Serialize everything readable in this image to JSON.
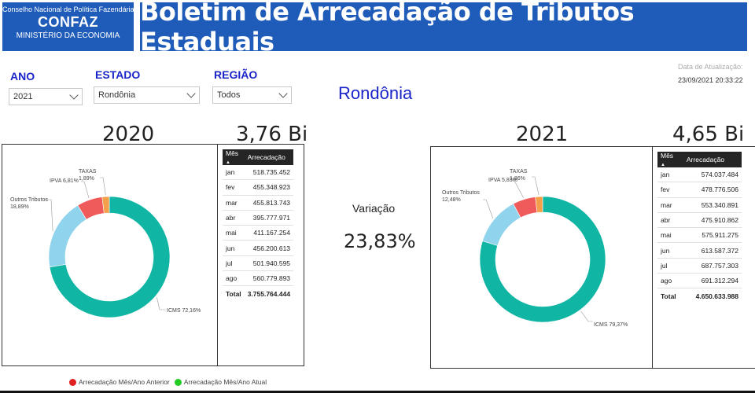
{
  "header": {
    "council": "Conselho Nacional de Política Fazendária",
    "org": "CONFAZ",
    "ministry": "MINISTÉRIO DA ECONOMIA",
    "title": "Boletim de Arrecadação de Tributos Estaduais"
  },
  "filters": {
    "year_label": "ANO",
    "year_value": "2021",
    "state_label": "ESTADO",
    "state_value": "Rondônia",
    "region_label": "REGIÃO",
    "region_value": "Todos"
  },
  "region_name": "Rondônia",
  "update": {
    "label": "Data de Atualização:",
    "value": "23/09/2021 20:33:22"
  },
  "variation": {
    "label": "Variação",
    "value": "23,83%"
  },
  "legend": {
    "previous": "Arrecadação Mês/Ano Anterior",
    "previous_color": "#e02020",
    "current": "Arrecadação Mês/Ano Atual",
    "current_color": "#22cc22"
  },
  "colors": {
    "icms": "#10b5a4",
    "outros": "#8fd3ec",
    "ipva": "#ef5a5a",
    "taxas": "#f4a04a"
  },
  "left": {
    "year": "2020",
    "total_short": "3,76 Bi",
    "table": {
      "col_month": "Mês",
      "col_value": "Arrecadação",
      "rows": [
        {
          "m": "jan",
          "v": "518.735.452"
        },
        {
          "m": "fev",
          "v": "455.348.923"
        },
        {
          "m": "mar",
          "v": "455.813.743"
        },
        {
          "m": "abr",
          "v": "395.777.971"
        },
        {
          "m": "mai",
          "v": "411.167.254"
        },
        {
          "m": "jun",
          "v": "456.200.613"
        },
        {
          "m": "jul",
          "v": "501.940.595"
        },
        {
          "m": "ago",
          "v": "560.779.893"
        }
      ],
      "total_label": "Total",
      "total_value": "3.755.764.444"
    }
  },
  "right": {
    "year": "2021",
    "total_short": "4,65 Bi",
    "table": {
      "col_month": "Mês",
      "col_value": "Arrecadação",
      "rows": [
        {
          "m": "jan",
          "v": "574.037.484"
        },
        {
          "m": "fev",
          "v": "478.776.506"
        },
        {
          "m": "mar",
          "v": "553.340.891"
        },
        {
          "m": "abr",
          "v": "475.910.862"
        },
        {
          "m": "mai",
          "v": "575.911.275"
        },
        {
          "m": "jun",
          "v": "613.587.372"
        },
        {
          "m": "jul",
          "v": "687.757.303"
        },
        {
          "m": "ago",
          "v": "691.312.294"
        }
      ],
      "total_label": "Total",
      "total_value": "4.650.633.988"
    }
  },
  "chart_data": [
    {
      "type": "pie",
      "categories": [
        "ICMS",
        "Outros Tributos",
        "IPVA",
        "TAXAS"
      ],
      "values": [
        72.16,
        18.89,
        6.81,
        1.89
      ],
      "labels": [
        "ICMS 72,16%",
        "Outros Tributos 18,89%",
        "IPVA 6,81%",
        "TAXAS 1,89%"
      ]
    },
    {
      "type": "pie",
      "categories": [
        "ICMS",
        "Outros Tributos",
        "IPVA",
        "TAXAS"
      ],
      "values": [
        79.37,
        12.48,
        5.83,
        1.86
      ],
      "labels": [
        "ICMS 79,37%",
        "Outros Tributos 12,48%",
        "IPVA 5,83%",
        "TAXAS 1,86%"
      ]
    }
  ]
}
